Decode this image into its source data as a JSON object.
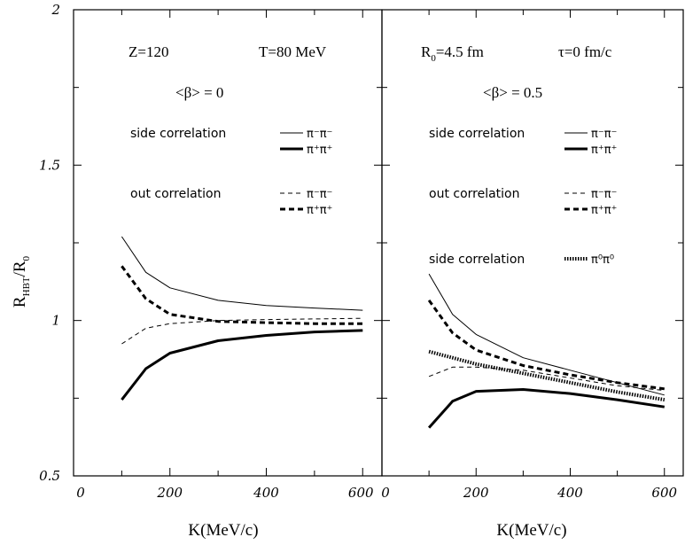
{
  "chart_data": {
    "type": "line",
    "y_axis": {
      "label_main": "R",
      "label_sub": "HBT",
      "label_slash": "/R",
      "label_sub2": "0",
      "ylim": [
        0.5,
        2.0
      ],
      "ticks": [
        {
          "value": 0.5,
          "label": "0.5"
        },
        {
          "value": 1.0,
          "label": "1"
        },
        {
          "value": 1.5,
          "label": "1.5"
        },
        {
          "value": 2.0,
          "label": "2"
        }
      ]
    },
    "panels": [
      {
        "id": "left",
        "xlabel": "K(MeV/c)",
        "xlim": [
          0,
          640
        ],
        "x_ticks": [
          {
            "value": 0,
            "label": "0"
          },
          {
            "value": 200,
            "label": "200"
          },
          {
            "value": 400,
            "label": "400"
          },
          {
            "value": 600,
            "label": "600"
          }
        ],
        "params": {
          "z": "Z=120",
          "t": "T=80 MeV",
          "beta_pre": "<",
          "beta_sym": "β",
          "beta_post": "> = 0"
        },
        "legend": [
          {
            "group": "side correlation",
            "label": "π⁻π⁻",
            "style": "thin-solid"
          },
          {
            "group": "",
            "label": "π⁺π⁺",
            "style": "thick-solid"
          },
          {
            "group": "out correlation",
            "label": "π⁻π⁻",
            "style": "thin-dashed"
          },
          {
            "group": "",
            "label": "π⁺π⁺",
            "style": "thick-dashed"
          }
        ],
        "series": [
          {
            "name": "side π⁻π⁻",
            "style": "thin-solid",
            "x": [
              100,
              150,
              200,
              300,
              400,
              500,
              600
            ],
            "y": [
              1.27,
              1.155,
              1.105,
              1.065,
              1.048,
              1.04,
              1.033
            ]
          },
          {
            "name": "side π⁺π⁺",
            "style": "thick-solid",
            "x": [
              100,
              150,
              200,
              300,
              400,
              500,
              600
            ],
            "y": [
              0.745,
              0.845,
              0.895,
              0.935,
              0.952,
              0.963,
              0.968
            ]
          },
          {
            "name": "out π⁻π⁻",
            "style": "thin-dashed",
            "x": [
              100,
              150,
              200,
              300,
              400,
              500,
              600
            ],
            "y": [
              0.925,
              0.975,
              0.99,
              1.0,
              1.003,
              1.005,
              1.007
            ]
          },
          {
            "name": "out π⁺π⁺",
            "style": "thick-dashed",
            "x": [
              100,
              150,
              200,
              300,
              400,
              500,
              600
            ],
            "y": [
              1.175,
              1.07,
              1.02,
              0.997,
              0.993,
              0.99,
              0.99
            ]
          }
        ]
      },
      {
        "id": "right",
        "xlabel": "K(MeV/c)",
        "xlim": [
          0,
          640
        ],
        "x_ticks": [
          {
            "value": 0,
            "label": "0"
          },
          {
            "value": 200,
            "label": "200"
          },
          {
            "value": 400,
            "label": "400"
          },
          {
            "value": 600,
            "label": "600"
          }
        ],
        "params": {
          "r0_main": "R",
          "r0_sub": "0",
          "r0_rest": "=4.5 fm",
          "tau": "τ=0 fm/c",
          "beta_pre": "<",
          "beta_sym": "β",
          "beta_post": "> = 0.5"
        },
        "legend": [
          {
            "group": "side correlation",
            "label": "π⁻π⁻",
            "style": "thin-solid"
          },
          {
            "group": "",
            "label": "π⁺π⁺",
            "style": "thick-solid"
          },
          {
            "group": "out correlation",
            "label": "π⁻π⁻",
            "style": "thin-dashed"
          },
          {
            "group": "",
            "label": "π⁺π⁺",
            "style": "thick-dashed"
          },
          {
            "group": "side correlation",
            "label": "π⁰π⁰",
            "style": "dotted"
          }
        ],
        "series": [
          {
            "name": "side π⁻π⁻",
            "style": "thin-solid",
            "x": [
              100,
              150,
              200,
              300,
              400,
              500,
              600
            ],
            "y": [
              1.15,
              1.02,
              0.955,
              0.88,
              0.84,
              0.8,
              0.76
            ]
          },
          {
            "name": "side π⁺π⁺",
            "style": "thick-solid",
            "x": [
              100,
              150,
              200,
              300,
              400,
              500,
              600
            ],
            "y": [
              0.655,
              0.74,
              0.772,
              0.778,
              0.765,
              0.745,
              0.722
            ]
          },
          {
            "name": "out π⁻π⁻",
            "style": "thin-dashed",
            "x": [
              100,
              150,
              200,
              300,
              400,
              500,
              600
            ],
            "y": [
              0.82,
              0.85,
              0.85,
              0.84,
              0.815,
              0.79,
              0.775
            ]
          },
          {
            "name": "out π⁺π⁺",
            "style": "thick-dashed",
            "x": [
              100,
              150,
              200,
              300,
              400,
              500,
              600
            ],
            "y": [
              1.065,
              0.96,
              0.905,
              0.855,
              0.825,
              0.8,
              0.78
            ]
          },
          {
            "name": "side π⁰π⁰",
            "style": "dotted",
            "x": [
              100,
              150,
              200,
              300,
              400,
              500,
              600
            ],
            "y": [
              0.9,
              0.88,
              0.86,
              0.83,
              0.8,
              0.77,
              0.745
            ]
          }
        ]
      }
    ]
  }
}
